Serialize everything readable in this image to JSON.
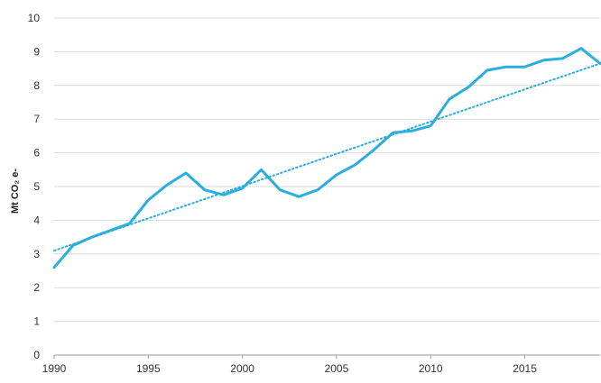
{
  "chart_data": {
    "type": "line",
    "title": "",
    "xlabel": "",
    "ylabel": "Mt CO₂ e-",
    "xlim": [
      1990,
      2019
    ],
    "ylim": [
      0,
      10
    ],
    "x_ticks": [
      1990,
      1995,
      2000,
      2005,
      2010,
      2015
    ],
    "y_ticks": [
      0,
      1,
      2,
      3,
      4,
      5,
      6,
      7,
      8,
      9,
      10
    ],
    "grid": "horizontal",
    "legend": "none",
    "series": [
      {
        "style": "solid",
        "color": "#29aee0",
        "x": [
          1990,
          1991,
          1992,
          1993,
          1994,
          1995,
          1996,
          1997,
          1998,
          1999,
          2000,
          2001,
          2002,
          2003,
          2004,
          2005,
          2006,
          2007,
          2008,
          2009,
          2010,
          2011,
          2012,
          2013,
          2014,
          2015,
          2016,
          2017,
          2018,
          2019
        ],
        "values": [
          2.6,
          3.25,
          3.5,
          3.7,
          3.9,
          4.6,
          5.05,
          5.4,
          4.9,
          4.75,
          4.95,
          5.5,
          4.9,
          4.7,
          4.9,
          5.35,
          5.65,
          6.1,
          6.6,
          6.65,
          6.8,
          7.6,
          7.95,
          8.45,
          8.55,
          8.55,
          8.75,
          8.8,
          9.1,
          8.65
        ]
      },
      {
        "style": "dotted",
        "color": "#29aee0",
        "x": [
          1990,
          2019
        ],
        "values": [
          3.1,
          8.65
        ]
      }
    ]
  }
}
